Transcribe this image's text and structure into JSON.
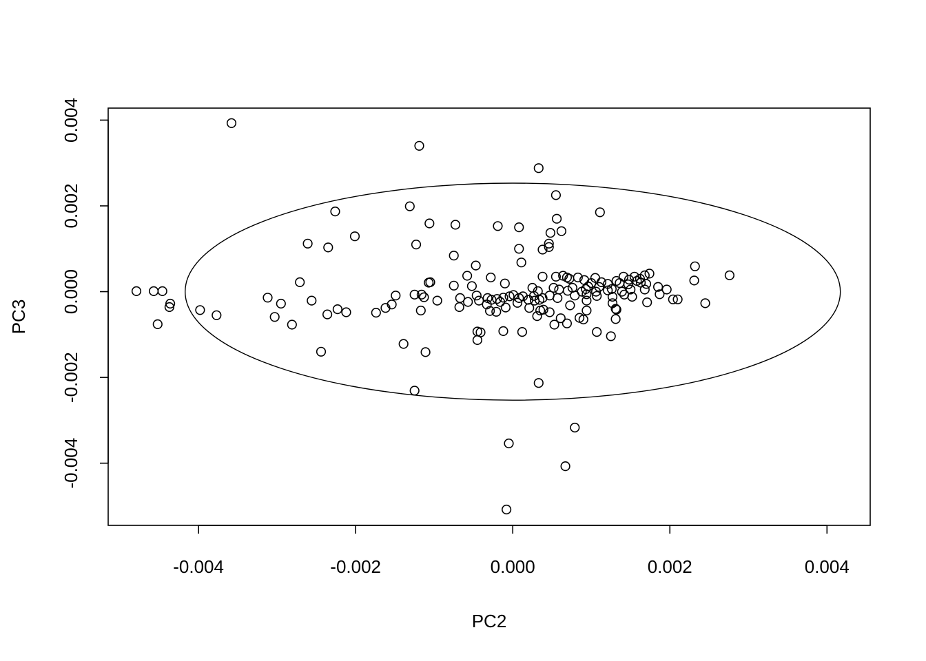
{
  "chart_data": {
    "type": "scatter",
    "xlabel": "PC2",
    "ylabel": "PC3",
    "xlim": [
      -0.00515,
      0.00455
    ],
    "ylim": [
      -0.00545,
      0.00428
    ],
    "x_ticks": [
      -0.004,
      -0.002,
      0.0,
      0.002,
      0.004
    ],
    "x_tick_labels": [
      "-0.004",
      "-0.002",
      "0.000",
      "0.002",
      "0.004"
    ],
    "y_ticks": [
      -0.004,
      -0.002,
      0.0,
      0.002,
      0.004
    ],
    "y_tick_labels": [
      "-0.004",
      "-0.002",
      "0.000",
      "0.002",
      "0.004"
    ],
    "grid": false,
    "legend": "none",
    "marker": "open-circle",
    "ellipse": {
      "cx": 0.0,
      "cy": 0.0,
      "rx": 0.00417,
      "ry": 0.00253
    },
    "points": [
      [
        -0.00358,
        0.00393
      ],
      [
        -0.00119,
        0.0034
      ],
      [
        0.00033,
        0.00288
      ],
      [
        0.00055,
        0.00225
      ],
      [
        -0.00131,
        0.00199
      ],
      [
        -0.00226,
        0.00187
      ],
      [
        0.00111,
        0.00185
      ],
      [
        0.00056,
        0.0017
      ],
      [
        -0.00106,
        0.00159
      ],
      [
        -0.00073,
        0.00156
      ],
      [
        -0.00019,
        0.00153
      ],
      [
        8e-05,
        0.0015
      ],
      [
        0.00062,
        0.00141
      ],
      [
        0.00048,
        0.00137
      ],
      [
        -0.00201,
        0.00129
      ],
      [
        0.00046,
        0.00112
      ],
      [
        -0.00261,
        0.00112
      ],
      [
        -0.00123,
        0.0011
      ],
      [
        0.00046,
        0.00104
      ],
      [
        -0.00235,
        0.00103
      ],
      [
        8e-05,
        0.001
      ],
      [
        0.00038,
        0.00098
      ],
      [
        -0.00075,
        0.00084
      ],
      [
        0.00011,
        0.00068
      ],
      [
        -0.00047,
        0.00061
      ],
      [
        0.00232,
        0.00059
      ],
      [
        0.00276,
        0.00038
      ],
      [
        0.00174,
        0.00042
      ],
      [
        -0.00058,
        0.00037
      ],
      [
        -0.00028,
        0.00033
      ],
      [
        0.00038,
        0.00035
      ],
      [
        0.00055,
        0.00035
      ],
      [
        0.00083,
        0.00033
      ],
      [
        0.00091,
        0.00027
      ],
      [
        0.00105,
        0.00032
      ],
      [
        0.00132,
        0.00025
      ],
      [
        0.00141,
        0.00035
      ],
      [
        0.00148,
        0.00028
      ],
      [
        0.00155,
        0.00035
      ],
      [
        0.00158,
        0.00025
      ],
      [
        0.00162,
        0.0003
      ],
      [
        0.00168,
        0.00038
      ],
      [
        0.00231,
        0.00026
      ],
      [
        0.00069,
        0.00033
      ],
      [
        -0.00271,
        0.00022
      ],
      [
        -0.00107,
        0.00021
      ],
      [
        -0.00105,
        0.00022
      ],
      [
        0.00064,
        0.00037
      ],
      [
        0.00072,
        0.0003
      ],
      [
        0.001,
        0.0002
      ],
      [
        0.00113,
        0.00022
      ],
      [
        0.00121,
        0.00018
      ],
      [
        0.00136,
        0.0002
      ],
      [
        0.00147,
        0.00017
      ],
      [
        0.00163,
        0.00021
      ],
      [
        0.0017,
        0.00018
      ],
      [
        -0.00075,
        0.00014
      ],
      [
        -0.00052,
        0.00013
      ],
      [
        -0.0001,
        0.00019
      ],
      [
        0.00025,
        9e-05
      ],
      [
        0.00052,
        9e-05
      ],
      [
        0.00076,
        9e-05
      ],
      [
        0.00096,
        0.00012
      ],
      [
        0.0011,
        0.00011
      ],
      [
        0.00126,
        6e-05
      ],
      [
        0.0015,
        5e-05
      ],
      [
        0.00185,
        0.00011
      ],
      [
        0.00196,
        5e-05
      ],
      [
        -0.00479,
        1e-05
      ],
      [
        -0.00457,
        1e-05
      ],
      [
        -0.00446,
        1e-05
      ],
      [
        0.00032,
        1e-05
      ],
      [
        0.00059,
        5e-05
      ],
      [
        0.0007,
        2e-05
      ],
      [
        0.00088,
        0.0
      ],
      [
        0.00093,
        6e-05
      ],
      [
        0.00106,
        0.0
      ],
      [
        0.00121,
        3e-05
      ],
      [
        0.00139,
        0.0
      ],
      [
        0.00168,
        5e-05
      ],
      [
        -0.00125,
        -7e-05
      ],
      [
        -0.00116,
        -7e-05
      ],
      [
        -0.00149,
        -9e-05
      ],
      [
        1e-05,
        -8e-05
      ],
      [
        0.00013,
        -0.00011
      ],
      [
        0.00027,
        -0.0001
      ],
      [
        0.00047,
        -9e-05
      ],
      [
        0.00079,
        -9e-05
      ],
      [
        0.00094,
        -6e-05
      ],
      [
        0.00107,
        -0.0001
      ],
      [
        0.00127,
        -0.00012
      ],
      [
        0.00142,
        -7e-05
      ],
      [
        0.00152,
        -0.00012
      ],
      [
        0.00187,
        -6e-05
      ],
      [
        -0.00312,
        -0.00014
      ],
      [
        -0.00113,
        -0.00013
      ],
      [
        -0.00067,
        -0.00015
      ],
      [
        -0.00046,
        -9e-05
      ],
      [
        -0.00032,
        -0.00015
      ],
      [
        -0.0002,
        -0.00017
      ],
      [
        -0.00012,
        -0.00014
      ],
      [
        -4e-05,
        -0.00011
      ],
      [
        8e-05,
        -0.00015
      ],
      [
        0.0002,
        -0.00019
      ],
      [
        0.00038,
        -0.00015
      ],
      [
        -0.00096,
        -0.00021
      ],
      [
        -0.00057,
        -0.00024
      ],
      [
        -0.00043,
        -0.00021
      ],
      [
        -0.00027,
        -0.00019
      ],
      [
        -0.00016,
        -0.00024
      ],
      [
        6e-05,
        -0.00026
      ],
      [
        0.00028,
        -0.00021
      ],
      [
        0.00034,
        -0.00019
      ],
      [
        0.00057,
        -0.00015
      ],
      [
        0.00094,
        -0.00021
      ],
      [
        0.00127,
        -0.00027
      ],
      [
        0.00171,
        -0.00025
      ],
      [
        0.0021,
        -0.00018
      ],
      [
        0.00204,
        -0.00018
      ],
      [
        0.00245,
        -0.00027
      ],
      [
        -0.00256,
        -0.00021
      ],
      [
        -0.00295,
        -0.00028
      ],
      [
        -0.00436,
        -0.00028
      ],
      [
        -0.00437,
        -0.00036
      ],
      [
        -0.00154,
        -0.0003
      ],
      [
        -0.00068,
        -0.00036
      ],
      [
        -0.00033,
        -0.0003
      ],
      [
        -9e-05,
        -0.00037
      ],
      [
        0.00021,
        -0.00038
      ],
      [
        0.00035,
        -0.00044
      ],
      [
        0.00073,
        -0.00032
      ],
      [
        0.00132,
        -0.00042
      ],
      [
        -0.00398,
        -0.00043
      ],
      [
        -0.00223,
        -0.00041
      ],
      [
        -0.00212,
        -0.00048
      ],
      [
        -0.00174,
        -0.00049
      ],
      [
        -0.00162,
        -0.00038
      ],
      [
        -0.00117,
        -0.00044
      ],
      [
        -0.00029,
        -0.00045
      ],
      [
        -0.00021,
        -0.00047
      ],
      [
        0.00039,
        -0.00042
      ],
      [
        0.00047,
        -0.00048
      ],
      [
        0.00094,
        -0.00044
      ],
      [
        0.00131,
        -0.0004
      ],
      [
        -0.00377,
        -0.00055
      ],
      [
        -0.00236,
        -0.00053
      ],
      [
        -0.00303,
        -0.00059
      ],
      [
        0.00031,
        -0.00057
      ],
      [
        0.00061,
        -0.00062
      ],
      [
        0.00085,
        -0.00061
      ],
      [
        0.0009,
        -0.00065
      ],
      [
        0.00131,
        -0.00064
      ],
      [
        -0.00452,
        -0.00076
      ],
      [
        -0.00281,
        -0.00077
      ],
      [
        0.00053,
        -0.00077
      ],
      [
        0.00069,
        -0.00074
      ],
      [
        -0.00045,
        -0.00093
      ],
      [
        -0.00041,
        -0.00095
      ],
      [
        -0.00012,
        -0.00092
      ],
      [
        0.00012,
        -0.00094
      ],
      [
        0.00107,
        -0.00094
      ],
      [
        0.00125,
        -0.00104
      ],
      [
        -0.00045,
        -0.00113
      ],
      [
        -0.00139,
        -0.00122
      ],
      [
        -0.00244,
        -0.0014
      ],
      [
        -0.00111,
        -0.00141
      ],
      [
        0.00033,
        -0.00213
      ],
      [
        -0.00125,
        -0.00231
      ],
      [
        0.00079,
        -0.00317
      ],
      [
        -5e-05,
        -0.00354
      ],
      [
        0.00067,
        -0.00407
      ],
      [
        -8e-05,
        -0.00508
      ]
    ]
  }
}
